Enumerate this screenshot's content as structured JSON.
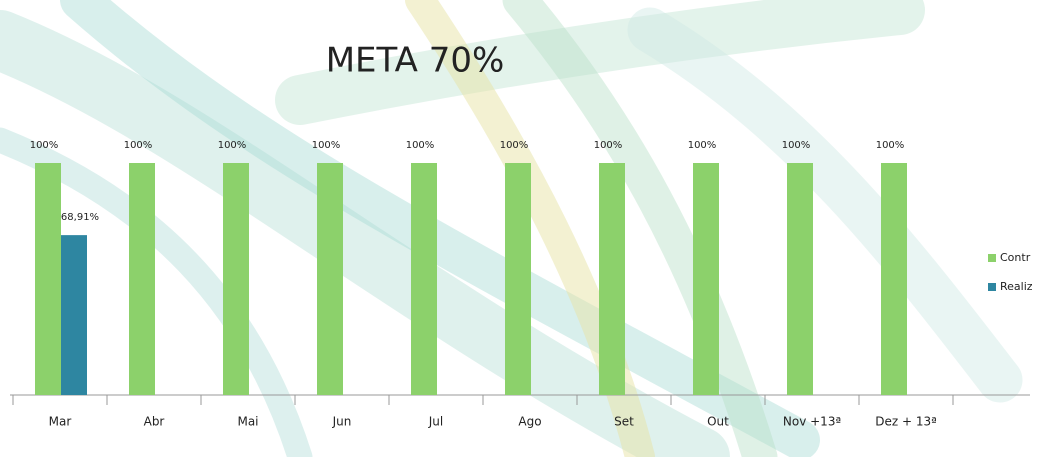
{
  "chart_data": {
    "type": "bar",
    "title": "META 70%",
    "categories": [
      "Mar",
      "Abr",
      "Mai",
      "Jun",
      "Jul",
      "Ago",
      "Set",
      "Out",
      "Nov +13ª",
      "Dez + 13ª"
    ],
    "series": [
      {
        "name": "Contr",
        "color": "#8cd16b",
        "values": [
          100,
          100,
          100,
          100,
          100,
          100,
          100,
          100,
          100,
          100
        ],
        "value_labels": [
          "100%",
          "100%",
          "100%",
          "100%",
          "100%",
          "100%",
          "100%",
          "100%",
          "100%",
          "100%"
        ]
      },
      {
        "name": "Realiz",
        "color": "#2e86a1",
        "values": [
          68.91,
          null,
          null,
          null,
          null,
          null,
          null,
          null,
          null,
          null
        ],
        "value_labels": [
          "68,91%",
          null,
          null,
          null,
          null,
          null,
          null,
          null,
          null,
          null
        ]
      }
    ],
    "ylim": [
      0,
      100
    ]
  }
}
